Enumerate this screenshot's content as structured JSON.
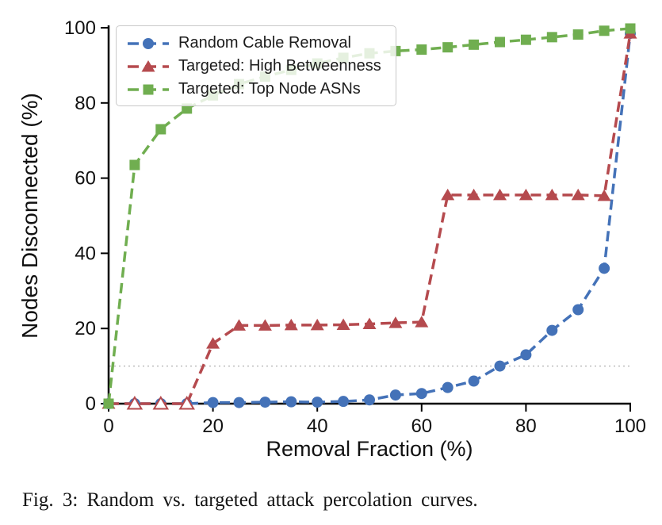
{
  "figure": {
    "caption": "Fig. 3: Random vs. targeted attack percolation curves."
  },
  "chart_data": {
    "type": "line",
    "title": "",
    "xlabel": "Removal Fraction (%)",
    "ylabel": "Nodes Disconnected (%)",
    "xlim": [
      0,
      100
    ],
    "ylim": [
      0,
      100
    ],
    "xticks": [
      0,
      20,
      40,
      60,
      80,
      100
    ],
    "yticks": [
      0,
      20,
      40,
      60,
      80,
      100
    ],
    "grid": false,
    "threshold_line": {
      "y": 10,
      "style": "dotted",
      "color": "#bdbdbd"
    },
    "legend_position": "upper-left",
    "x": [
      0,
      5,
      10,
      15,
      20,
      25,
      30,
      35,
      40,
      45,
      50,
      55,
      60,
      65,
      70,
      75,
      80,
      85,
      90,
      95,
      100
    ],
    "series": [
      {
        "name": "Random Cable Removal",
        "color": "#4472b8",
        "marker": "circle",
        "values": [
          0,
          0,
          0,
          0,
          0.3,
          0.3,
          0.4,
          0.5,
          0.4,
          0.6,
          1.0,
          2.3,
          2.7,
          4.3,
          6.0,
          10.0,
          13.0,
          19.5,
          25.0,
          36.0,
          98.5
        ]
      },
      {
        "name": "Targeted: High Betweenness",
        "color": "#b54a4e",
        "marker": "triangle",
        "values": [
          0,
          0,
          0,
          0,
          16.0,
          20.8,
          20.8,
          20.9,
          20.9,
          21.0,
          21.2,
          21.5,
          21.7,
          55.5,
          55.5,
          55.5,
          55.5,
          55.5,
          55.5,
          55.3,
          98.5
        ]
      },
      {
        "name": "Targeted: Top Node ASNs",
        "color": "#70ae50",
        "marker": "square",
        "values": [
          0,
          63.5,
          73.0,
          78.5,
          82.0,
          85.0,
          87.0,
          88.8,
          90.5,
          92.0,
          93.2,
          93.8,
          94.2,
          94.8,
          95.5,
          96.2,
          96.8,
          97.5,
          98.2,
          99.2,
          99.8
        ]
      }
    ]
  }
}
